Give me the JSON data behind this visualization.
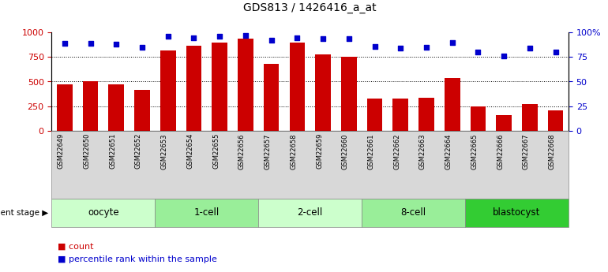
{
  "title": "GDS813 / 1426416_a_at",
  "samples": [
    "GSM22649",
    "GSM22650",
    "GSM22651",
    "GSM22652",
    "GSM22653",
    "GSM22654",
    "GSM22655",
    "GSM22656",
    "GSM22657",
    "GSM22658",
    "GSM22659",
    "GSM22660",
    "GSM22661",
    "GSM22662",
    "GSM22663",
    "GSM22664",
    "GSM22665",
    "GSM22666",
    "GSM22667",
    "GSM22668"
  ],
  "counts": [
    470,
    505,
    470,
    415,
    820,
    870,
    900,
    940,
    680,
    900,
    775,
    755,
    330,
    325,
    335,
    540,
    245,
    155,
    270,
    205
  ],
  "percentiles": [
    89,
    89,
    88,
    85,
    96,
    95,
    96,
    97,
    92,
    95,
    94,
    94,
    86,
    84,
    85,
    90,
    80,
    76,
    84,
    80
  ],
  "groups": [
    {
      "label": "oocyte",
      "start": 0,
      "end": 4,
      "color": "#ccffcc"
    },
    {
      "label": "1-cell",
      "start": 4,
      "end": 8,
      "color": "#99ee99"
    },
    {
      "label": "2-cell",
      "start": 8,
      "end": 12,
      "color": "#ccffcc"
    },
    {
      "label": "8-cell",
      "start": 12,
      "end": 16,
      "color": "#99ee99"
    },
    {
      "label": "blastocyst",
      "start": 16,
      "end": 20,
      "color": "#33cc33"
    }
  ],
  "bar_color": "#cc0000",
  "dot_color": "#0000cc",
  "ylim_left": [
    0,
    1000
  ],
  "ylim_right": [
    0,
    100
  ],
  "yticks_left": [
    0,
    250,
    500,
    750,
    1000
  ],
  "yticks_right": [
    0,
    25,
    50,
    75,
    100
  ],
  "ytick_labels_right": [
    "0",
    "25",
    "50",
    "75",
    "100%"
  ],
  "grid_values": [
    250,
    500,
    750
  ],
  "bar_width": 0.6,
  "legend_count_label": "count",
  "legend_pct_label": "percentile rank within the sample",
  "dev_stage_label": "development stage",
  "tick_label_color_left": "#cc0000",
  "tick_label_color_right": "#0000cc",
  "title_fontsize": 10,
  "group_fontsize": 8.5,
  "sample_fontsize": 6,
  "legend_fontsize": 8
}
